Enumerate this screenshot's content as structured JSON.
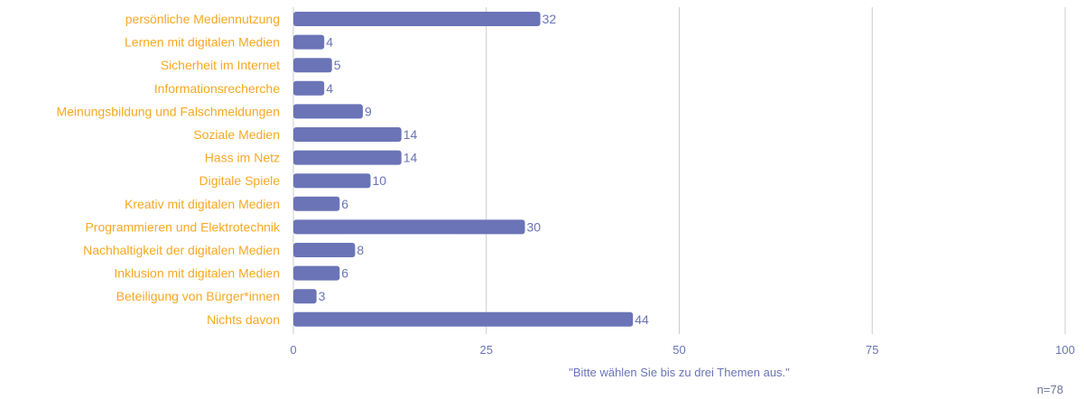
{
  "chart_data": {
    "type": "bar",
    "orientation": "horizontal",
    "categories": [
      "persönliche Mediennutzung",
      "Lernen mit digitalen Medien",
      "Sicherheit im Internet",
      "Informationsrecherche",
      "Meinungsbildung und Falschmeldungen",
      "Soziale Medien",
      "Hass im Netz",
      "Digitale Spiele",
      "Kreativ mit digitalen Medien",
      "Programmieren und Elektrotechnik",
      "Nachhaltigkeit der digitalen Medien",
      "Inklusion mit digitalen Medien",
      "Beteiligung von Bürger*innen",
      "Nichts davon"
    ],
    "values": [
      32,
      4,
      5,
      4,
      9,
      14,
      14,
      10,
      6,
      30,
      8,
      6,
      3,
      44
    ],
    "xlim": [
      0,
      100
    ],
    "xticks": [
      "0",
      "25",
      "50",
      "75",
      "100"
    ],
    "xlabel": "\"Bitte wählen Sie bis zu drei Themen aus.\"",
    "grid": true,
    "colors": {
      "bar": "#6a74b6",
      "category_text": "#f7a823",
      "value_text": "#6a74b6",
      "axis_text": "#6a74b6",
      "grid": "#cccccc"
    }
  },
  "note": "n=78"
}
